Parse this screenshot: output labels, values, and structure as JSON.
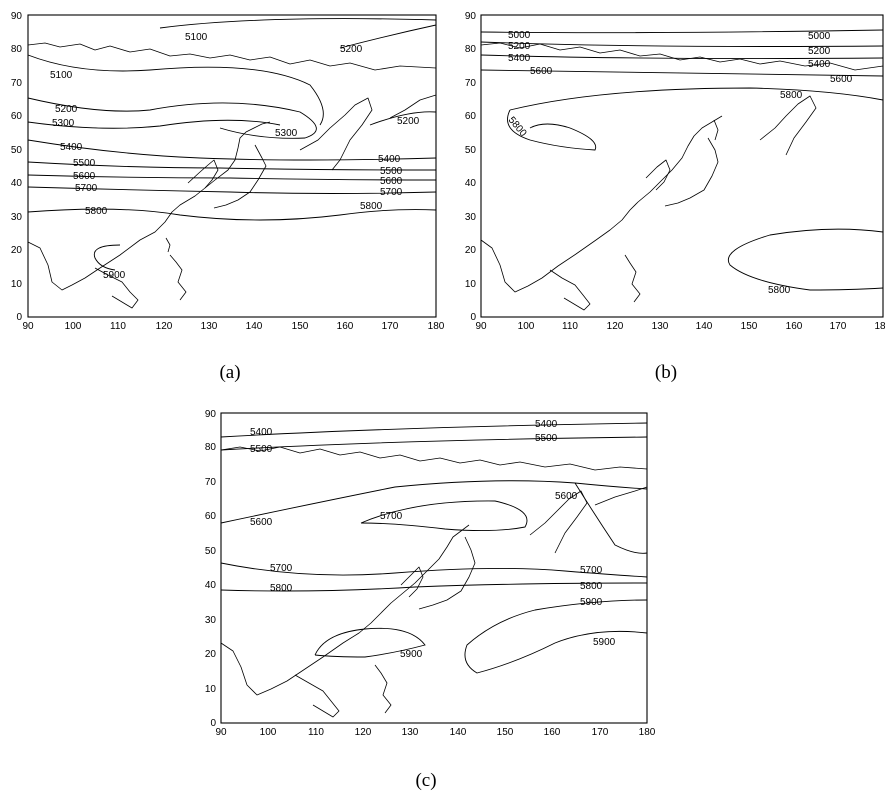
{
  "panels": [
    {
      "id": "a",
      "caption": "(a)",
      "x_ticks": [
        "90",
        "100",
        "110",
        "120",
        "130",
        "140",
        "150",
        "160",
        "170",
        "180"
      ],
      "y_ticks": [
        "0",
        "10",
        "20",
        "30",
        "40",
        "50",
        "60",
        "70",
        "80",
        "90"
      ],
      "contour_labels": [
        "5100",
        "5200",
        "5100",
        "5200",
        "5300",
        "5300",
        "5200",
        "5400",
        "5500",
        "5600",
        "5700",
        "5400",
        "5500",
        "5600",
        "5700",
        "5800",
        "5800",
        "5900"
      ]
    },
    {
      "id": "b",
      "caption": "(b)",
      "x_ticks": [
        "90",
        "100",
        "110",
        "120",
        "130",
        "140",
        "150",
        "160",
        "170",
        "18"
      ],
      "y_ticks": [
        "0",
        "10",
        "20",
        "30",
        "40",
        "50",
        "60",
        "70",
        "80",
        "90"
      ],
      "contour_labels": [
        "5000",
        "5200",
        "5400",
        "5600",
        "5000",
        "5200",
        "5400",
        "5600",
        "5800",
        "5800",
        "5800"
      ]
    },
    {
      "id": "c",
      "caption": "(c)",
      "x_ticks": [
        "90",
        "100",
        "110",
        "120",
        "130",
        "140",
        "150",
        "160",
        "170",
        "180"
      ],
      "y_ticks": [
        "0",
        "10",
        "20",
        "30",
        "40",
        "50",
        "60",
        "70",
        "80",
        "90"
      ],
      "contour_labels": [
        "5400",
        "5500",
        "5400",
        "5500",
        "5600",
        "5700",
        "5600",
        "5700",
        "5800",
        "5700",
        "5800",
        "5900",
        "5900",
        "5900"
      ]
    }
  ]
}
